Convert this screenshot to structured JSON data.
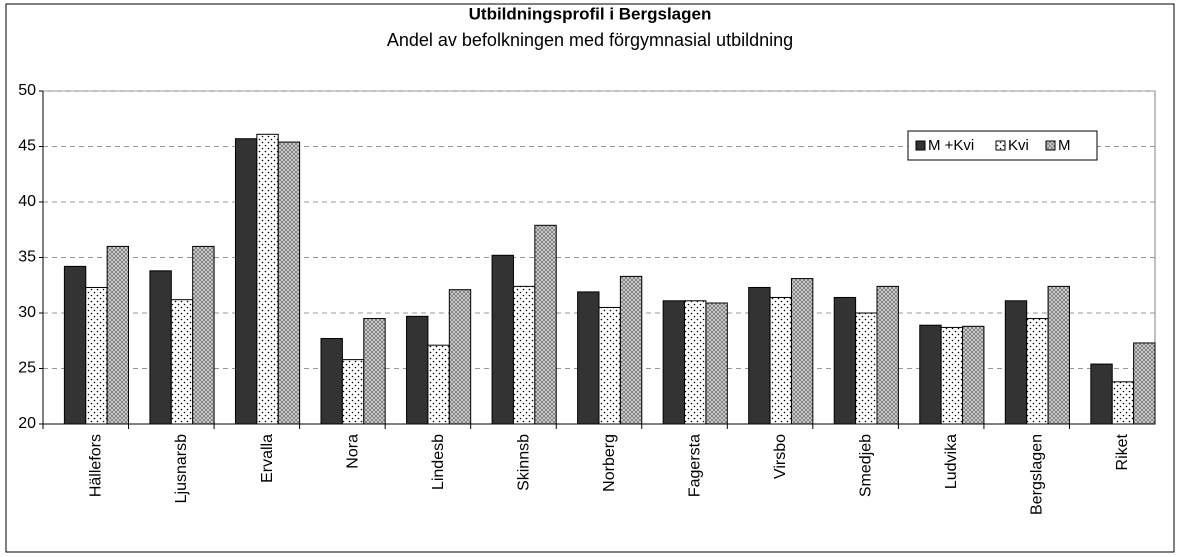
{
  "chart_data": {
    "type": "bar",
    "title": "Utbildningsprofil i Bergslagen",
    "subtitle": "Andel av befolkningen med förgymnasial utbildning",
    "categories": [
      "Hällefors",
      "Ljusnarsb",
      "Ervalla",
      "Nora",
      "Lindesb",
      "Skinnsb",
      "Norberg",
      "Fagersta",
      "Virsbo",
      "Smedjeb",
      "Ludvika",
      "Bergslagen",
      "Riket"
    ],
    "series": [
      {
        "name": "M +Kvi",
        "color": "#333333",
        "pattern": "solid",
        "values": [
          34.2,
          33.8,
          45.7,
          27.7,
          29.7,
          35.2,
          31.9,
          31.1,
          32.3,
          31.4,
          28.9,
          31.1,
          25.4
        ]
      },
      {
        "name": "Kvi",
        "color": "#ffffff",
        "pattern": "dots",
        "values": [
          32.3,
          31.2,
          46.1,
          25.8,
          27.1,
          32.4,
          30.5,
          31.1,
          31.4,
          30.0,
          28.7,
          29.5,
          23.8
        ]
      },
      {
        "name": "M",
        "color": "#c8c8c8",
        "pattern": "crosshatch",
        "values": [
          36.0,
          36.0,
          45.4,
          29.5,
          32.1,
          37.9,
          33.3,
          30.9,
          33.1,
          32.4,
          28.8,
          32.4,
          27.3
        ]
      }
    ],
    "ylim": [
      20,
      50
    ],
    "yticks": [
      20,
      25,
      30,
      35,
      40,
      45,
      50
    ],
    "grid": true,
    "legend": "top-right"
  }
}
